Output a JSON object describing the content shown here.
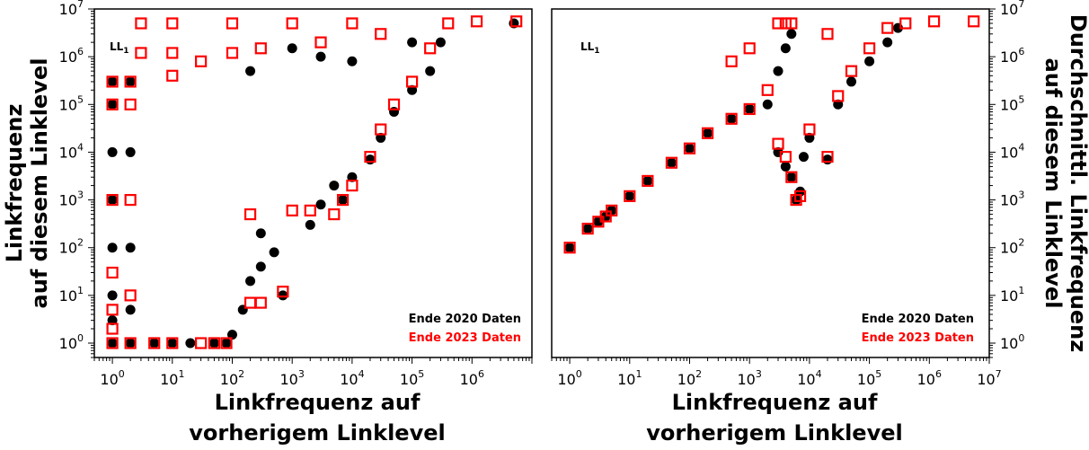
{
  "chart_data": [
    {
      "type": "scatter",
      "id": "left",
      "panel_label": "LL",
      "panel_label_sub": "1",
      "xlabel_lines": [
        "Linkfrequenz auf",
        "vorherigem Linklevel"
      ],
      "ylabel_lines": [
        "Linkfrequenz",
        "auf diesem Linklevel"
      ],
      "x_scale": "log",
      "y_scale": "log",
      "xlim": [
        0.5,
        10000000
      ],
      "ylim": [
        0.5,
        10000000
      ],
      "x_tick_exponents": [
        0,
        1,
        2,
        3,
        4,
        5,
        6
      ],
      "y_tick_exponents": [
        0,
        1,
        2,
        3,
        4,
        5,
        6,
        7
      ],
      "legend": [
        "Ende 2020 Daten",
        "Ende 2023 Daten"
      ],
      "legend_position": "bottom-right",
      "series": [
        {
          "name": "Ende 2020 Daten",
          "color": "#000000",
          "marker": "filled-circle",
          "points": [
            [
              1,
              1
            ],
            [
              1,
              3
            ],
            [
              1,
              10
            ],
            [
              1,
              100
            ],
            [
              1,
              1000
            ],
            [
              1,
              10000
            ],
            [
              1,
              100000
            ],
            [
              1,
              300000
            ],
            [
              2,
              1
            ],
            [
              2,
              5
            ],
            [
              2,
              100
            ],
            [
              2,
              10000
            ],
            [
              2,
              300000
            ],
            [
              5,
              1
            ],
            [
              10,
              1
            ],
            [
              20,
              1
            ],
            [
              50,
              1
            ],
            [
              80,
              1
            ],
            [
              100,
              1.5
            ],
            [
              150,
              5
            ],
            [
              200,
              20
            ],
            [
              300,
              40
            ],
            [
              700,
              10
            ],
            [
              300,
              200
            ],
            [
              500,
              80
            ],
            [
              2000,
              300
            ],
            [
              3000,
              800
            ],
            [
              7000,
              1000
            ],
            [
              5000,
              2000
            ],
            [
              10000,
              3000
            ],
            [
              20000,
              7000
            ],
            [
              30000,
              20000
            ],
            [
              50000,
              70000
            ],
            [
              100000,
              200000
            ],
            [
              200000,
              500000
            ],
            [
              300000,
              2000000
            ],
            [
              5000000,
              5000000
            ],
            [
              200,
              500000
            ],
            [
              1000,
              1500000
            ],
            [
              3000,
              1000000
            ],
            [
              10000,
              800000
            ],
            [
              100000,
              2000000
            ]
          ]
        },
        {
          "name": "Ende 2023 Daten",
          "color": "#ff0000",
          "marker": "open-square",
          "points": [
            [
              1,
              1
            ],
            [
              1,
              2
            ],
            [
              1,
              5
            ],
            [
              1,
              30
            ],
            [
              1,
              1000
            ],
            [
              1,
              100000
            ],
            [
              1,
              300000
            ],
            [
              2,
              1
            ],
            [
              2,
              10
            ],
            [
              2,
              1000
            ],
            [
              2,
              100000
            ],
            [
              2,
              300000
            ],
            [
              5,
              1
            ],
            [
              10,
              1
            ],
            [
              30,
              1
            ],
            [
              50,
              1
            ],
            [
              80,
              1
            ],
            [
              200,
              7
            ],
            [
              300,
              7
            ],
            [
              700,
              12
            ],
            [
              200,
              500
            ],
            [
              1000,
              600
            ],
            [
              2000,
              600
            ],
            [
              5000,
              500
            ],
            [
              7000,
              1000
            ],
            [
              10000,
              2000
            ],
            [
              20000,
              8000
            ],
            [
              30000,
              30000
            ],
            [
              50000,
              100000
            ],
            [
              100000,
              300000
            ],
            [
              200000,
              1500000
            ],
            [
              400000,
              5000000
            ],
            [
              1200000,
              5500000
            ],
            [
              5500000,
              5500000
            ],
            [
              3,
              5000000
            ],
            [
              10,
              5000000
            ],
            [
              100,
              5000000
            ],
            [
              1000,
              5000000
            ],
            [
              10000,
              5000000
            ],
            [
              3,
              1200000
            ],
            [
              10,
              1200000
            ],
            [
              100,
              1200000
            ],
            [
              10,
              400000
            ],
            [
              30,
              800000
            ],
            [
              300,
              1500000
            ],
            [
              3000,
              2000000
            ],
            [
              30000,
              3000000
            ]
          ]
        }
      ]
    },
    {
      "type": "scatter",
      "id": "right",
      "panel_label": "LL",
      "panel_label_sub": "1",
      "xlabel_lines": [
        "Linkfrequenz auf",
        "vorherigem Linklevel"
      ],
      "ylabel_lines": [
        "Durchschnittl. Linkfrequenz",
        "auf diesem Linklevel"
      ],
      "x_scale": "log",
      "y_scale": "log",
      "xlim": [
        0.5,
        10000000
      ],
      "ylim": [
        0.5,
        10000000
      ],
      "x_tick_exponents": [
        0,
        1,
        2,
        3,
        4,
        5,
        6,
        7
      ],
      "y_tick_exponents": [
        0,
        1,
        2,
        3,
        4,
        5,
        6,
        7
      ],
      "legend": [
        "Ende 2020 Daten",
        "Ende 2023 Daten"
      ],
      "legend_position": "bottom-right",
      "series": [
        {
          "name": "Ende 2020 Daten",
          "color": "#000000",
          "marker": "filled-circle",
          "points": [
            [
              1,
              100
            ],
            [
              2,
              250
            ],
            [
              3,
              350
            ],
            [
              4,
              450
            ],
            [
              5,
              600
            ],
            [
              10,
              1200
            ],
            [
              20,
              2500
            ],
            [
              50,
              6000
            ],
            [
              100,
              12000
            ],
            [
              200,
              25000
            ],
            [
              500,
              50000
            ],
            [
              1000,
              80000
            ],
            [
              2000,
              100000
            ],
            [
              3000,
              10000
            ],
            [
              4000,
              5000
            ],
            [
              5000,
              3000
            ],
            [
              6000,
              1000
            ],
            [
              7000,
              1500
            ],
            [
              8000,
              8000
            ],
            [
              10000,
              20000
            ],
            [
              20000,
              7000
            ],
            [
              30000,
              100000
            ],
            [
              50000,
              300000
            ],
            [
              100000,
              800000
            ],
            [
              200000,
              2000000
            ],
            [
              300000,
              4000000
            ],
            [
              3000,
              500000
            ],
            [
              4000,
              1500000
            ],
            [
              5000,
              3000000
            ]
          ]
        },
        {
          "name": "Ende 2023 Daten",
          "color": "#ff0000",
          "marker": "open-square",
          "points": [
            [
              1,
              100
            ],
            [
              2,
              250
            ],
            [
              3,
              350
            ],
            [
              4,
              450
            ],
            [
              5,
              600
            ],
            [
              10,
              1200
            ],
            [
              20,
              2500
            ],
            [
              50,
              6000
            ],
            [
              100,
              12000
            ],
            [
              200,
              25000
            ],
            [
              500,
              50000
            ],
            [
              1000,
              80000
            ],
            [
              2000,
              200000
            ],
            [
              3000,
              15000
            ],
            [
              4000,
              8000
            ],
            [
              5000,
              3000
            ],
            [
              6000,
              1000
            ],
            [
              7000,
              1200
            ],
            [
              10000,
              30000
            ],
            [
              20000,
              8000
            ],
            [
              30000,
              150000
            ],
            [
              50000,
              500000
            ],
            [
              100000,
              1500000
            ],
            [
              200000,
              4000000
            ],
            [
              400000,
              5000000
            ],
            [
              1200000,
              5500000
            ],
            [
              5500000,
              5500000
            ],
            [
              500,
              800000
            ],
            [
              1000,
              1500000
            ],
            [
              3000,
              5000000
            ],
            [
              4000,
              5000000
            ],
            [
              5000,
              5000000
            ],
            [
              20000,
              3000000
            ]
          ]
        }
      ]
    }
  ]
}
